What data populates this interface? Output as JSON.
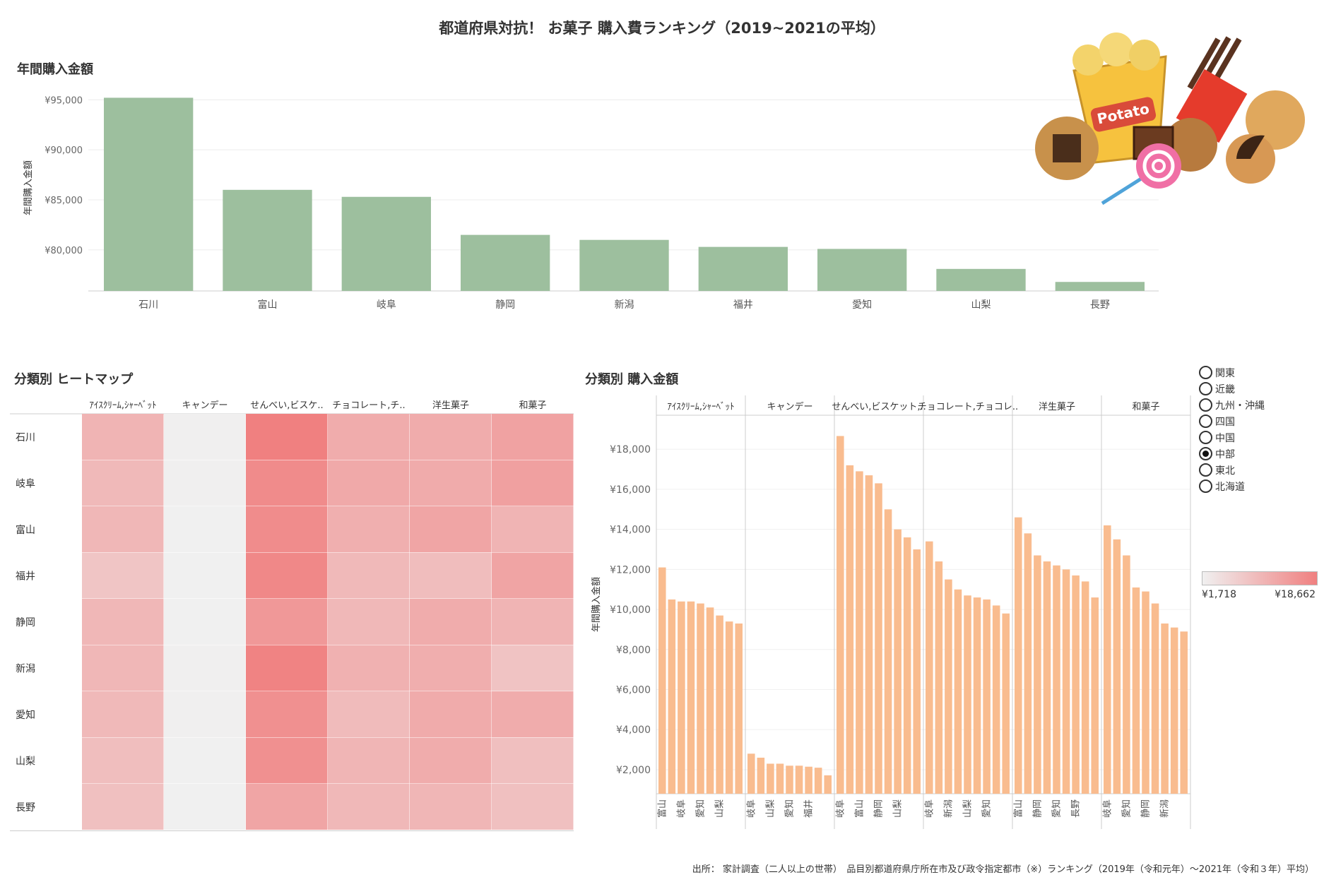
{
  "title": "都道府県対抗！ お菓子 購入費ランキング（2019~2021の平均）",
  "source_note": "出所： 家計調査（二人以上の世帯）　品目別都道府県庁所在市及び政令指定都市（※）ランキング（2019年（令和元年）～2021年（令和３年）平均）",
  "legend": {
    "items": [
      "関東",
      "近畿",
      "九州・沖縄",
      "四国",
      "中国",
      "中部",
      "東北",
      "北海道"
    ],
    "selected_index": 5
  },
  "color_scale": {
    "min_label": "¥1,718",
    "max_label": "¥18,662",
    "min_value": 1718,
    "max_value": 18662,
    "min_color": "#f0f0f0",
    "max_color": "#f08080"
  },
  "image": {
    "description_name": "snack-illustration",
    "text": "Potato"
  },
  "chart_data": [
    {
      "id": "annual",
      "type": "bar",
      "title": "年間購入金額",
      "ylabel": "年間購入金額",
      "categories": [
        "石川",
        "富山",
        "岐阜",
        "静岡",
        "新潟",
        "福井",
        "愛知",
        "山梨",
        "長野"
      ],
      "values": [
        95200,
        86000,
        85300,
        81500,
        81000,
        80300,
        80100,
        78100,
        76800
      ],
      "ylim": [
        75900,
        96500
      ],
      "yticks": [
        80000,
        85000,
        90000,
        95000
      ],
      "ytick_labels": [
        "¥80,000",
        "¥85,000",
        "¥90,000",
        "¥95,000"
      ],
      "color": "#9dbf9e",
      "grid": true
    },
    {
      "id": "heatmap",
      "type": "heatmap",
      "title": "分類別 ヒートマップ",
      "columns": [
        "ｱｲｽｸﾘｰﾑ,ｼｬｰﾍﾞｯﾄ",
        "キャンデー",
        "せんべい,ビスケ..",
        "チョコレート,チ..",
        "洋生菓子",
        "和菓子"
      ],
      "rows": [
        "石川",
        "岐阜",
        "富山",
        "福井",
        "静岡",
        "新潟",
        "愛知",
        "山梨",
        "長野"
      ],
      "values": [
        [
          10800,
          1800,
          18662,
          12000,
          12000,
          13500
        ],
        [
          10000,
          1850,
          17000,
          12500,
          12200,
          13800
        ],
        [
          10400,
          1718,
          16800,
          11500,
          13000,
          10800
        ],
        [
          8200,
          1720,
          17500,
          10000,
          9500,
          13200
        ],
        [
          10300,
          1760,
          15000,
          10200,
          12000,
          10800
        ],
        [
          10300,
          1800,
          18200,
          11200,
          11700,
          8500
        ],
        [
          10100,
          1800,
          16200,
          9700,
          12200,
          12000
        ],
        [
          9300,
          1740,
          16200,
          10700,
          12000,
          9100
        ],
        [
          9000,
          1790,
          13000,
          10200,
          10500,
          9000
        ]
      ]
    },
    {
      "id": "by-category",
      "type": "bar",
      "title": "分類別 購入金額",
      "ylabel": "年間購入金額",
      "ylim": [
        800,
        19700
      ],
      "yticks": [
        2000,
        4000,
        6000,
        8000,
        10000,
        12000,
        14000,
        16000,
        18000
      ],
      "ytick_labels": [
        "¥2,000",
        "¥4,000",
        "¥6,000",
        "¥8,000",
        "¥10,000",
        "¥12,000",
        "¥14,000",
        "¥16,000",
        "¥18,000"
      ],
      "color": "#f9bc8f",
      "panels": [
        {
          "name": "ｱｲｽｸﾘｰﾑ,ｼｬｰﾍﾞｯﾄ",
          "values": [
            12100,
            10500,
            10400,
            10400,
            10300,
            10100,
            9700,
            9400,
            9300
          ],
          "visible_labels": [
            "富山",
            "",
            "岐阜",
            "",
            "愛知",
            "",
            "山梨",
            "",
            ""
          ]
        },
        {
          "name": "キャンデー",
          "values": [
            2800,
            2600,
            2300,
            2300,
            2200,
            2200,
            2150,
            2100,
            1718
          ],
          "visible_labels": [
            "岐阜",
            "",
            "山梨",
            "",
            "愛知",
            "",
            "福井",
            "",
            ""
          ]
        },
        {
          "name": "せんべい,ビスケット,..",
          "values": [
            18662,
            17200,
            16900,
            16700,
            16300,
            15000,
            14000,
            13600,
            13000
          ],
          "visible_labels": [
            "岐阜",
            "",
            "富山",
            "",
            "静岡",
            "",
            "山梨",
            "",
            ""
          ]
        },
        {
          "name": "チョコレート,チョコレ..",
          "values": [
            13400,
            12400,
            11500,
            11000,
            10700,
            10600,
            10500,
            10200,
            9800
          ],
          "visible_labels": [
            "岐阜",
            "",
            "新潟",
            "",
            "山梨",
            "",
            "愛知",
            "",
            ""
          ]
        },
        {
          "name": "洋生菓子",
          "values": [
            14600,
            13800,
            12700,
            12400,
            12200,
            12000,
            11700,
            11400,
            10600
          ],
          "visible_labels": [
            "富山",
            "",
            "静岡",
            "",
            "愛知",
            "",
            "長野",
            "",
            ""
          ]
        },
        {
          "name": "和菓子",
          "values": [
            14200,
            13500,
            12700,
            11100,
            10900,
            10300,
            9300,
            9100,
            8900
          ],
          "visible_labels": [
            "岐阜",
            "",
            "愛知",
            "",
            "静岡",
            "",
            "新潟",
            "",
            ""
          ]
        }
      ]
    }
  ]
}
